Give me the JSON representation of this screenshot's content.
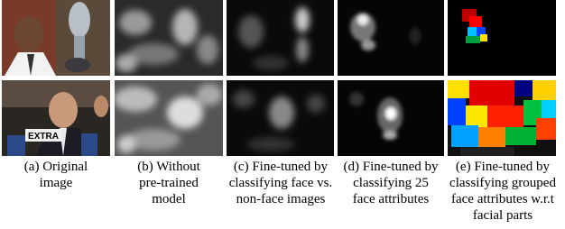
{
  "figure": {
    "photo_text": "EXTRA",
    "captions": [
      [
        "(a) Original",
        "image"
      ],
      [
        "(b) Without",
        "pre-trained",
        "model"
      ],
      [
        "(c) Fine-tuned by",
        "classifying face vs.",
        "non-face images"
      ],
      [
        "(d) Fine-tuned by",
        "classifying 25",
        "face attributes"
      ],
      [
        "(e) Fine-tuned by",
        "classifying grouped",
        "face attributes w.r.t",
        "facial parts"
      ]
    ]
  }
}
